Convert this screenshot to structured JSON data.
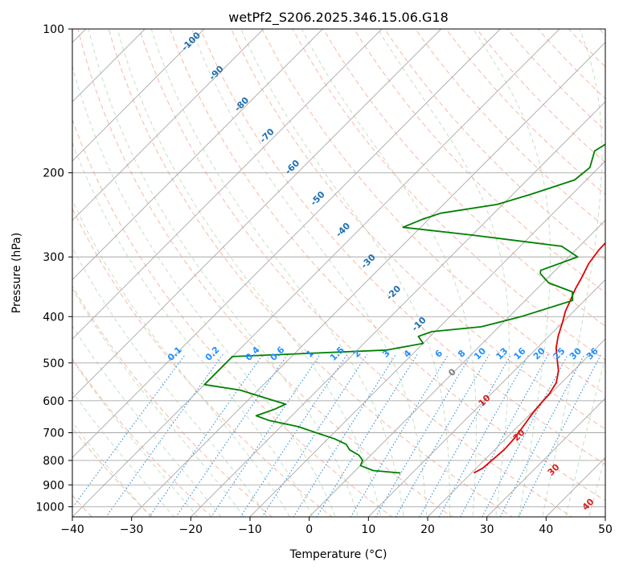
{
  "chart_data": {
    "type": "line",
    "title": "wetPf2_S206.2025.346.15.06.G18",
    "xlabel": "Temperature (°C)",
    "ylabel": "Pressure (hPa)",
    "xlim": [
      -40,
      50
    ],
    "ylim": [
      1050,
      100
    ],
    "x_ticks": [
      -40,
      -30,
      -20,
      -10,
      0,
      10,
      20,
      30,
      40,
      50
    ],
    "y_ticks": [
      100,
      200,
      300,
      400,
      500,
      600,
      700,
      800,
      900,
      1000
    ],
    "grid": true,
    "skew": 45,
    "series": [
      {
        "name": "Temperature",
        "color": "#e00000",
        "points": [
          [
            20.4,
            850
          ],
          [
            21.1,
            830
          ],
          [
            21.3,
            800
          ],
          [
            21.6,
            760
          ],
          [
            21.4,
            720
          ],
          [
            20.9,
            680
          ],
          [
            20.3,
            640
          ],
          [
            20.0,
            610
          ],
          [
            19.8,
            580
          ],
          [
            19.1,
            550
          ],
          [
            17.5,
            520
          ],
          [
            15.2,
            490
          ],
          [
            13.2,
            465
          ],
          [
            11.6,
            440
          ],
          [
            9.9,
            410
          ],
          [
            8.6,
            390
          ],
          [
            7.6,
            370
          ],
          [
            6.5,
            350
          ],
          [
            5.6,
            330
          ],
          [
            4.5,
            310
          ],
          [
            3.9,
            290
          ],
          [
            3.8,
            275
          ],
          [
            3.3,
            255
          ],
          [
            2.8,
            235
          ],
          [
            2.5,
            215
          ],
          [
            2.6,
            200
          ],
          [
            3.5,
            190
          ],
          [
            5.3,
            175
          ],
          [
            6.1,
            165
          ],
          [
            6.0,
            155
          ],
          [
            7.0,
            143
          ],
          [
            8.9,
            130
          ],
          [
            9.7,
            122
          ],
          [
            10.1,
            115
          ],
          [
            12.3,
            108
          ],
          [
            14.1,
            100
          ]
        ]
      },
      {
        "name": "Dewpoint",
        "color": "#008000",
        "points": [
          [
            8.0,
            850
          ],
          [
            3.0,
            840
          ],
          [
            0.0,
            820
          ],
          [
            -0.5,
            800
          ],
          [
            -2.0,
            780
          ],
          [
            -4.5,
            760
          ],
          [
            -6.0,
            740
          ],
          [
            -9.0,
            720
          ],
          [
            -13.0,
            700
          ],
          [
            -17.0,
            680
          ],
          [
            -23.0,
            660
          ],
          [
            -26.0,
            645
          ],
          [
            -24.0,
            625
          ],
          [
            -23.0,
            610
          ],
          [
            -28.0,
            590
          ],
          [
            -33.0,
            570
          ],
          [
            -40.0,
            555
          ],
          [
            -40.0,
            485
          ],
          [
            -15.0,
            470
          ],
          [
            -10.0,
            455
          ],
          [
            -12.0,
            440
          ],
          [
            -10.5,
            430
          ],
          [
            -3.0,
            420
          ],
          [
            2.0,
            400
          ],
          [
            8.0,
            370
          ],
          [
            6.5,
            355
          ],
          [
            1.0,
            340
          ],
          [
            -2.0,
            325
          ],
          [
            -2.5,
            320
          ],
          [
            1.5,
            300
          ],
          [
            -3.0,
            285
          ],
          [
            -20.0,
            270
          ],
          [
            -33.0,
            260
          ],
          [
            -31.0,
            250
          ],
          [
            -29.0,
            243
          ],
          [
            -21.0,
            233
          ],
          [
            -17.0,
            222
          ],
          [
            -12.0,
            207
          ],
          [
            -11.5,
            195
          ],
          [
            -13.5,
            180
          ],
          [
            -12.0,
            168
          ],
          [
            -13.0,
            160
          ],
          [
            -10.5,
            145
          ],
          [
            -5.0,
            130
          ],
          [
            -3.8,
            122
          ],
          [
            -2.5,
            112
          ],
          [
            -1.5,
            100
          ]
        ]
      }
    ],
    "dry_adiabat_labels": [
      "-100",
      "-90",
      "-80",
      "-70",
      "-60",
      "-50",
      "-40",
      "-30",
      "-20",
      "-10"
    ],
    "dry_adiabat_label_color": "#1f6fb0",
    "mixing_ratio_labels": [
      "0.1",
      "0.2",
      "0.4",
      "0.6",
      "1",
      "1.5",
      "2",
      "3",
      "4",
      "6",
      "8",
      "10",
      "13",
      "16",
      "20",
      "25",
      "30",
      "36"
    ],
    "mixing_ratio_label_color": "#1e90ff",
    "isotherm_labels_red": [
      "10",
      "20",
      "30",
      "40"
    ],
    "isotherm_label_zero": "0",
    "isotherm_label_color": "#d42020"
  }
}
